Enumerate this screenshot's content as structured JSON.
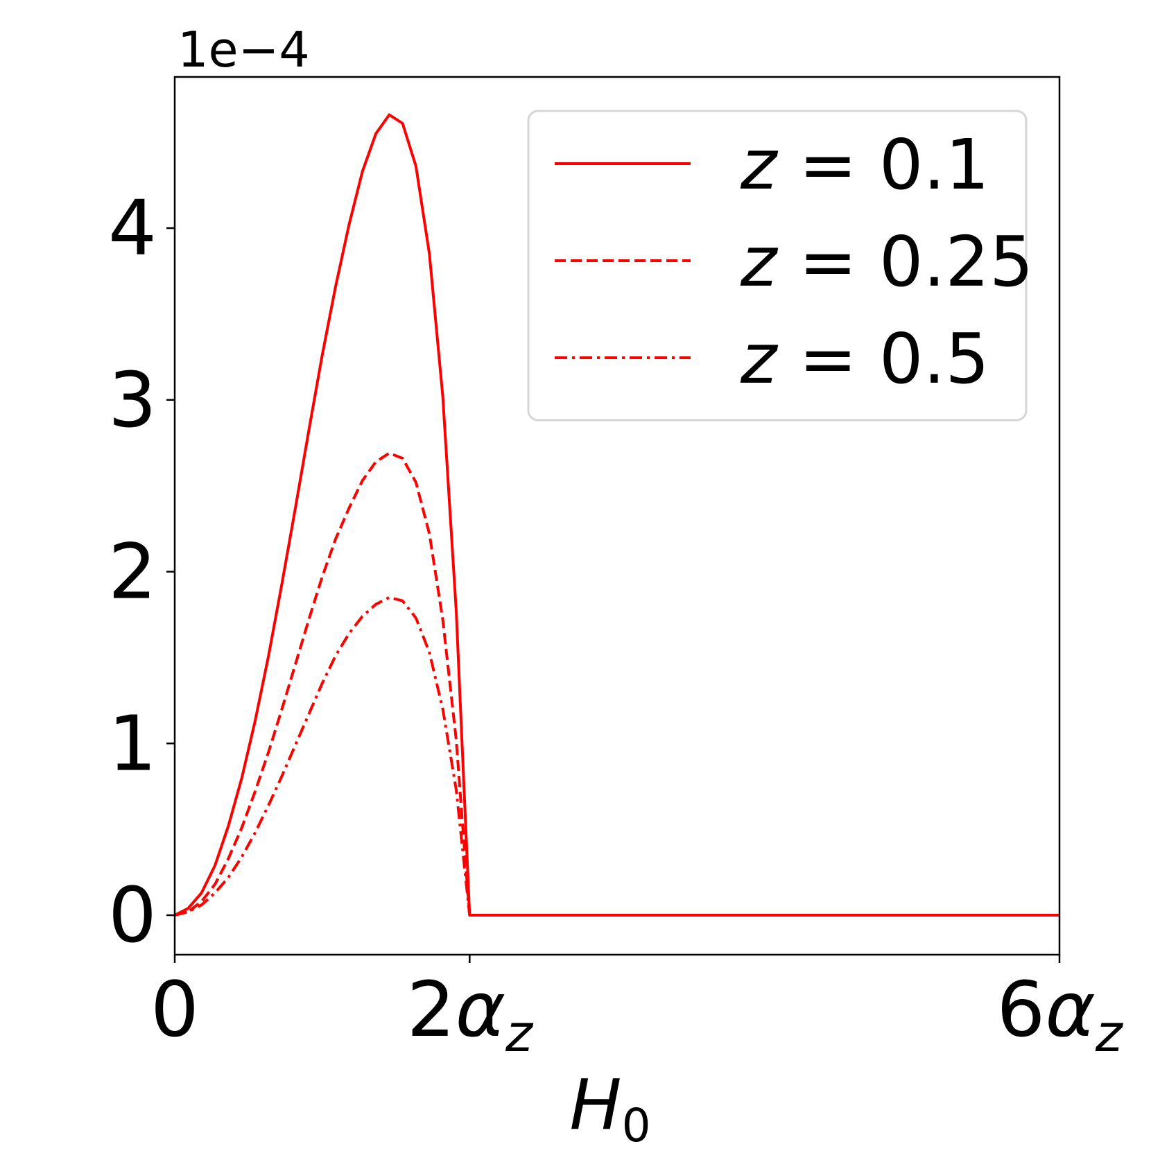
{
  "chart_data": {
    "type": "line",
    "title": "",
    "xlabel": "H",
    "xlabel_sub": "0",
    "ylabel": "",
    "offset_text": "1e−4",
    "x_unit_label": "α",
    "x_unit_sub": "z",
    "xlim": [
      0,
      6
    ],
    "ylim": [
      -0.23,
      4.88
    ],
    "x_ticks": [
      {
        "value": 0,
        "coef": "0",
        "unit": false
      },
      {
        "value": 2,
        "coef": "2",
        "unit": true
      },
      {
        "value": 6,
        "coef": "6",
        "unit": true
      }
    ],
    "y_ticks": [
      {
        "value": 0,
        "label": "0"
      },
      {
        "value": 1,
        "label": "1"
      },
      {
        "value": 2,
        "label": "2"
      },
      {
        "value": 3,
        "label": "3"
      },
      {
        "value": 4,
        "label": "4"
      }
    ],
    "grid": false,
    "legend_position": "top-right",
    "legend_var": "z",
    "series": [
      {
        "name": "z = 0.1",
        "value_label": "0.1",
        "style": "solid",
        "color": "#ff0000",
        "x": [
          0,
          0.091,
          0.182,
          0.273,
          0.364,
          0.455,
          0.545,
          0.636,
          0.727,
          0.818,
          0.909,
          1.0,
          1.091,
          1.182,
          1.273,
          1.364,
          1.455,
          1.545,
          1.636,
          1.727,
          1.818,
          1.909,
          2.0,
          6.0
        ],
        "y": [
          0,
          0.04,
          0.13,
          0.29,
          0.52,
          0.8,
          1.13,
          1.51,
          1.93,
          2.37,
          2.82,
          3.26,
          3.66,
          4.02,
          4.33,
          4.55,
          4.66,
          4.61,
          4.36,
          3.85,
          3.02,
          1.77,
          0,
          0
        ]
      },
      {
        "name": "z = 0.25",
        "value_label": "0.25",
        "style": "dashed",
        "color": "#ff0000",
        "x": [
          0,
          0.091,
          0.182,
          0.273,
          0.364,
          0.455,
          0.545,
          0.636,
          0.727,
          0.818,
          0.909,
          1.0,
          1.091,
          1.182,
          1.273,
          1.364,
          1.455,
          1.545,
          1.636,
          1.727,
          1.818,
          1.909,
          1.95,
          2.0,
          6.0
        ],
        "y": [
          0,
          0.02,
          0.08,
          0.18,
          0.33,
          0.51,
          0.72,
          0.95,
          1.2,
          1.46,
          1.72,
          1.97,
          2.19,
          2.37,
          2.53,
          2.64,
          2.69,
          2.66,
          2.52,
          2.22,
          1.72,
          1.02,
          0.55,
          0,
          0
        ]
      },
      {
        "name": "z = 0.5",
        "value_label": "0.5",
        "style": "dashdot",
        "color": "#ff0000",
        "x": [
          0,
          0.091,
          0.182,
          0.273,
          0.364,
          0.455,
          0.545,
          0.636,
          0.727,
          0.818,
          0.909,
          1.0,
          1.091,
          1.182,
          1.273,
          1.364,
          1.455,
          1.545,
          1.636,
          1.727,
          1.818,
          1.909,
          1.95,
          2.0,
          6.0
        ],
        "y": [
          0,
          0.02,
          0.06,
          0.13,
          0.22,
          0.34,
          0.48,
          0.64,
          0.81,
          0.99,
          1.17,
          1.35,
          1.51,
          1.64,
          1.74,
          1.81,
          1.85,
          1.83,
          1.73,
          1.53,
          1.2,
          0.73,
          0.4,
          0,
          0
        ]
      }
    ]
  }
}
